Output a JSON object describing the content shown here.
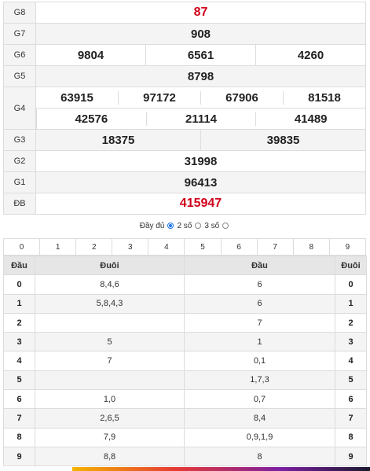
{
  "prizes": {
    "g8": {
      "label": "G8",
      "values": [
        "87"
      ]
    },
    "g7": {
      "label": "G7",
      "values": [
        "908"
      ]
    },
    "g6": {
      "label": "G6",
      "values": [
        "9804",
        "6561",
        "4260"
      ]
    },
    "g5": {
      "label": "G5",
      "values": [
        "8798"
      ]
    },
    "g4": {
      "label": "G4",
      "row1": [
        "63915",
        "97172",
        "67906",
        "81518"
      ],
      "row2": [
        "42576",
        "21114",
        "41489"
      ]
    },
    "g3": {
      "label": "G3",
      "values": [
        "18375",
        "39835"
      ]
    },
    "g2": {
      "label": "G2",
      "values": [
        "31998"
      ]
    },
    "g1": {
      "label": "G1",
      "values": [
        "96413"
      ]
    },
    "db": {
      "label": "ĐB",
      "values": [
        "415947"
      ]
    }
  },
  "display_options": {
    "full_label": "Đầy đủ",
    "two_digit_label": "2 số",
    "three_digit_label": "3 số",
    "selected": "Đầy đủ"
  },
  "digit_filter": [
    "0",
    "1",
    "2",
    "3",
    "4",
    "5",
    "6",
    "7",
    "8",
    "9"
  ],
  "dau_duoi": {
    "headers": [
      "Đầu",
      "Đuôi",
      "Đầu",
      "Đuôi"
    ],
    "rows": [
      {
        "dau": "0",
        "duoi_list": "8,4,6",
        "dau_list": "6",
        "duoi": "0"
      },
      {
        "dau": "1",
        "duoi_list": "5,8,4,3",
        "dau_list": "6",
        "duoi": "1"
      },
      {
        "dau": "2",
        "duoi_list": "",
        "dau_list": "7",
        "duoi": "2"
      },
      {
        "dau": "3",
        "duoi_list": "5",
        "dau_list": "1",
        "duoi": "3"
      },
      {
        "dau": "4",
        "duoi_list": "7",
        "dau_list": "0,1",
        "duoi": "4"
      },
      {
        "dau": "5",
        "duoi_list": "",
        "dau_list": "1,7,3",
        "duoi": "5"
      },
      {
        "dau": "6",
        "duoi_list": "1,0",
        "dau_list": "0,7",
        "duoi": "6"
      },
      {
        "dau": "7",
        "duoi_list": "2,6,5",
        "dau_list": "8,4",
        "duoi": "7"
      },
      {
        "dau": "8",
        "duoi_list": "7,9",
        "dau_list": "0,9,1,9",
        "duoi": "8"
      },
      {
        "dau": "9",
        "duoi_list": "8,8",
        "dau_list": "8",
        "duoi": "9"
      }
    ]
  },
  "colors": {
    "special_prize": "#d0021b",
    "g8_prize": "#d0021b",
    "radio_selected": "#1a73e8"
  }
}
